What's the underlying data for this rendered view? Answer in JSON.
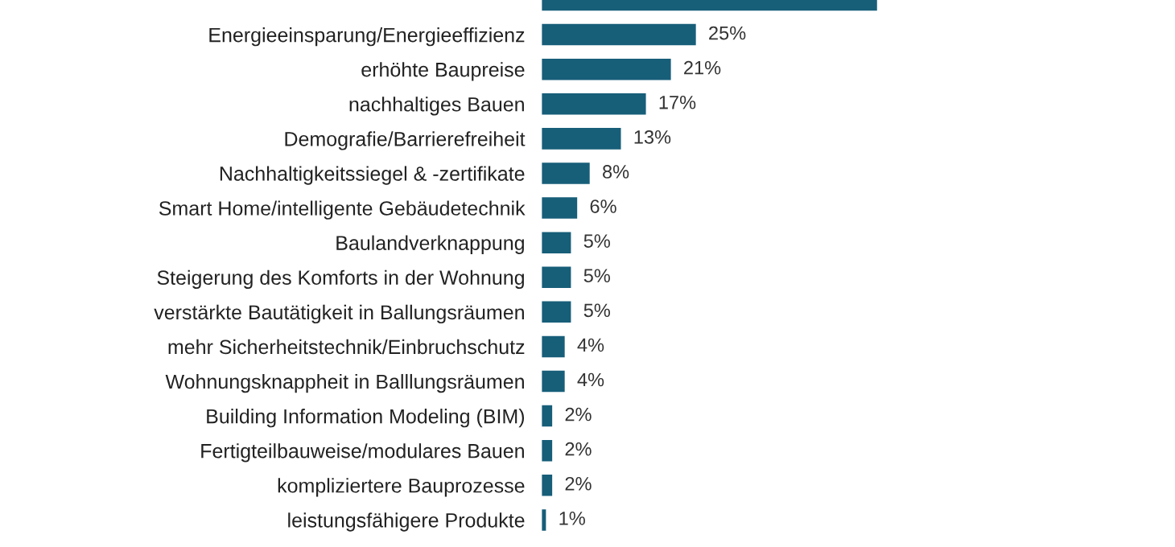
{
  "chart_data": {
    "type": "bar",
    "orientation": "horizontal",
    "color": "#175e79",
    "categories": [
      null,
      "Energieeinsparung/Energieeffizienz",
      "erhöhte Baupreise",
      "nachhaltiges Bauen",
      "Demografie/Barrierefreiheit",
      "Nachhaltigkeitssiegel & -zertifikate",
      "Smart Home/intelligente Gebäudetechnik",
      "Baulandverknappung",
      "Steigerung des Komforts in der Wohnung",
      "verstärkte Bautätigkeit in Ballungsräumen",
      "mehr Sicherheitstechnik/Einbruchschutz",
      "Wohnungsknappheit in Balllungsräumen",
      "Building Information Modeling (BIM)",
      "Fertigteilbauweise/modulares Bauen",
      "kompliziertere Bauprozesse",
      "leistungsfähigere Produkte"
    ],
    "values": [
      54,
      25,
      21,
      17,
      13,
      8,
      6,
      5,
      5,
      5,
      4,
      4,
      2,
      2,
      2,
      1
    ],
    "value_labels": [
      null,
      "25%",
      "21%",
      "17%",
      "13%",
      "8%",
      "6%",
      "5%",
      "5%",
      "5%",
      "4%",
      "4%",
      "2%",
      "2%",
      "2%",
      "1%"
    ]
  }
}
